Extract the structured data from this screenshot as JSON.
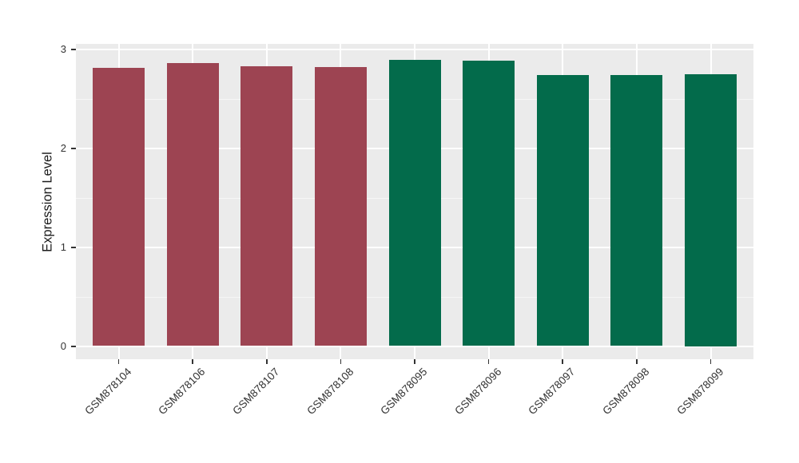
{
  "chart_data": {
    "type": "bar",
    "title": "",
    "xlabel": "",
    "ylabel": "Expression Level",
    "categories": [
      "GSM878104",
      "GSM878106",
      "GSM878107",
      "GSM878108",
      "GSM878095",
      "GSM878096",
      "GSM878097",
      "GSM878098",
      "GSM878099"
    ],
    "values": [
      2.81,
      2.86,
      2.83,
      2.82,
      2.89,
      2.88,
      2.74,
      2.74,
      2.75
    ],
    "bar_colors": [
      "#9D4452",
      "#9D4452",
      "#9D4452",
      "#9D4452",
      "#036B4B",
      "#036B4B",
      "#036B4B",
      "#036B4B",
      "#036B4B"
    ],
    "group_colors": {
      "left_group_maroon": "#9D4452",
      "right_group_green": "#036B4B"
    },
    "ylim": [
      0,
      3.05
    ],
    "yticks": [
      0,
      1,
      2,
      3
    ],
    "ytick_labels": [
      "0",
      "1",
      "2",
      "3"
    ],
    "yminor": [
      0.5,
      1.5,
      2.5
    ],
    "x_tick_angle_deg": 45,
    "grid": "on",
    "legend": "none",
    "style": {
      "panel_background": "#EBEBEB",
      "major_grid_color": "#FFFFFF",
      "minor_grid_color": "#F6F6F6",
      "axis_text_color": "#333333",
      "axis_title_color": "#1A1A1A",
      "tick_mark_color": "#333333",
      "figure_background": "#FFFFFF"
    }
  }
}
